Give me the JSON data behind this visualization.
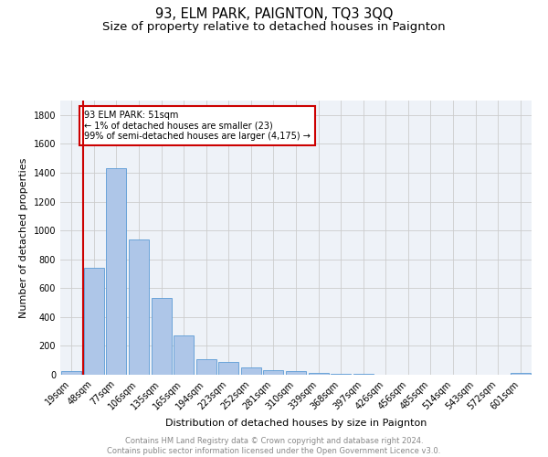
{
  "title": "93, ELM PARK, PAIGNTON, TQ3 3QQ",
  "subtitle": "Size of property relative to detached houses in Paignton",
  "xlabel": "Distribution of detached houses by size in Paignton",
  "ylabel": "Number of detached properties",
  "footnote": "Contains HM Land Registry data © Crown copyright and database right 2024.\nContains public sector information licensed under the Open Government Licence v3.0.",
  "bar_labels": [
    "19sqm",
    "48sqm",
    "77sqm",
    "106sqm",
    "135sqm",
    "165sqm",
    "194sqm",
    "223sqm",
    "252sqm",
    "281sqm",
    "310sqm",
    "339sqm",
    "368sqm",
    "397sqm",
    "426sqm",
    "456sqm",
    "485sqm",
    "514sqm",
    "543sqm",
    "572sqm",
    "601sqm"
  ],
  "bar_values": [
    23,
    740,
    1430,
    940,
    535,
    270,
    105,
    90,
    48,
    33,
    26,
    12,
    8,
    5,
    3,
    2,
    1,
    0,
    0,
    0,
    10
  ],
  "bar_color": "#aec6e8",
  "bar_edge_color": "#5b9bd5",
  "annotation_text": "93 ELM PARK: 51sqm\n← 1% of detached houses are smaller (23)\n99% of semi-detached houses are larger (4,175) →",
  "annotation_box_color": "#ffffff",
  "annotation_box_edge_color": "#cc0000",
  "red_line_color": "#cc0000",
  "ylim": [
    0,
    1900
  ],
  "yticks": [
    0,
    200,
    400,
    600,
    800,
    1000,
    1200,
    1400,
    1600,
    1800
  ],
  "grid_color": "#cccccc",
  "bg_color": "#eef2f8",
  "title_fontsize": 10.5,
  "subtitle_fontsize": 9.5,
  "ylabel_fontsize": 8,
  "xlabel_fontsize": 8,
  "tick_fontsize": 7,
  "annotation_fontsize": 7,
  "footnote_fontsize": 6
}
